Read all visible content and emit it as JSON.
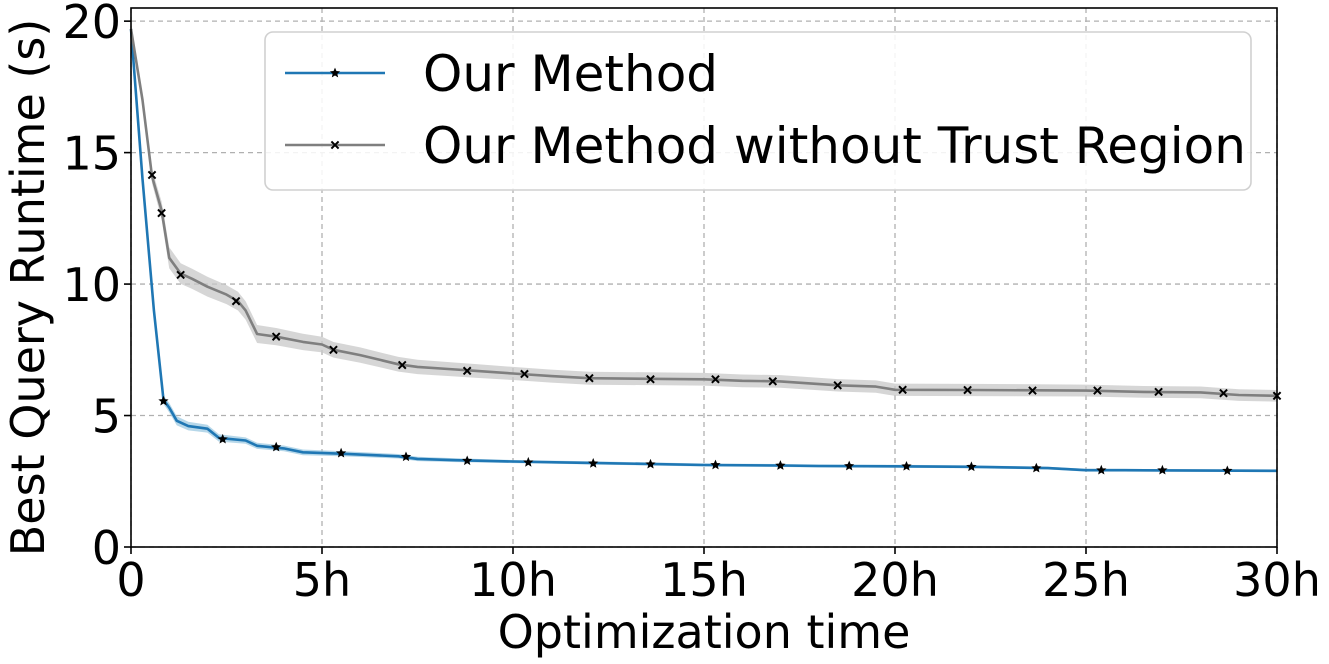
{
  "chart_data": {
    "type": "line",
    "title": "",
    "xlabel": "Optimization time",
    "ylabel": "Best Query Runtime (s)",
    "xlim": [
      0,
      30
    ],
    "ylim": [
      0,
      20.5
    ],
    "x_ticks": [
      {
        "value": 0,
        "label": "0"
      },
      {
        "value": 5,
        "label": "5h"
      },
      {
        "value": 10,
        "label": "10h"
      },
      {
        "value": 15,
        "label": "15h"
      },
      {
        "value": 20,
        "label": "20h"
      },
      {
        "value": 25,
        "label": "25h"
      },
      {
        "value": 30,
        "label": "30h"
      }
    ],
    "y_ticks": [
      {
        "value": 0,
        "label": "0"
      },
      {
        "value": 5,
        "label": "5"
      },
      {
        "value": 10,
        "label": "10"
      },
      {
        "value": 15,
        "label": "15"
      },
      {
        "value": 20,
        "label": "20"
      }
    ],
    "grid": true,
    "legend_position": "top-right",
    "series": [
      {
        "name": "Our Method",
        "color": "#1f77b4",
        "band_color": "#9ecae1",
        "marker": "star",
        "line": [
          [
            0,
            19.7
          ],
          [
            0.3,
            14.0
          ],
          [
            0.6,
            9.0
          ],
          [
            0.85,
            5.6
          ],
          [
            1.0,
            5.3
          ],
          [
            1.2,
            4.8
          ],
          [
            1.5,
            4.6
          ],
          [
            2.0,
            4.5
          ],
          [
            2.3,
            4.15
          ],
          [
            3.0,
            4.05
          ],
          [
            3.3,
            3.85
          ],
          [
            4.0,
            3.75
          ],
          [
            4.5,
            3.6
          ],
          [
            5.5,
            3.55
          ],
          [
            7.0,
            3.45
          ],
          [
            7.5,
            3.35
          ],
          [
            8.5,
            3.3
          ],
          [
            10.0,
            3.25
          ],
          [
            12.0,
            3.2
          ],
          [
            15.0,
            3.12
          ],
          [
            17.0,
            3.1
          ],
          [
            18.0,
            3.08
          ],
          [
            20.0,
            3.07
          ],
          [
            22.0,
            3.05
          ],
          [
            24.0,
            3.0
          ],
          [
            25.0,
            2.92
          ],
          [
            26.0,
            2.92
          ],
          [
            30.0,
            2.9
          ]
        ],
        "band_width": [
          [
            0,
            0.05
          ],
          [
            1.0,
            0.18
          ],
          [
            3.0,
            0.12
          ],
          [
            10.0,
            0.06
          ],
          [
            30.0,
            0.05
          ]
        ],
        "markers": [
          [
            0.85,
            5.55
          ],
          [
            2.4,
            4.1
          ],
          [
            3.8,
            3.8
          ],
          [
            5.5,
            3.57
          ],
          [
            7.2,
            3.43
          ],
          [
            8.8,
            3.28
          ],
          [
            10.4,
            3.22
          ],
          [
            12.1,
            3.18
          ],
          [
            13.6,
            3.15
          ],
          [
            15.3,
            3.12
          ],
          [
            17.0,
            3.1
          ],
          [
            18.8,
            3.08
          ],
          [
            20.3,
            3.07
          ],
          [
            22.0,
            3.05
          ],
          [
            23.7,
            3.0
          ],
          [
            25.4,
            2.92
          ],
          [
            27.0,
            2.92
          ],
          [
            28.7,
            2.9
          ]
        ]
      },
      {
        "name": "Our Method without Trust Region",
        "color": "#7f7f7f",
        "band_color": "#c8c8c8",
        "marker": "x",
        "line": [
          [
            0,
            19.7
          ],
          [
            0.3,
            17.0
          ],
          [
            0.55,
            14.1
          ],
          [
            0.8,
            12.8
          ],
          [
            1.0,
            11.0
          ],
          [
            1.3,
            10.4
          ],
          [
            1.6,
            10.2
          ],
          [
            2.0,
            9.9
          ],
          [
            2.5,
            9.6
          ],
          [
            2.8,
            9.35
          ],
          [
            3.0,
            9.0
          ],
          [
            3.3,
            8.1
          ],
          [
            3.8,
            8.0
          ],
          [
            4.5,
            7.8
          ],
          [
            5.0,
            7.7
          ],
          [
            5.3,
            7.5
          ],
          [
            6.0,
            7.3
          ],
          [
            7.0,
            6.95
          ],
          [
            7.5,
            6.85
          ],
          [
            8.5,
            6.75
          ],
          [
            9.0,
            6.7
          ],
          [
            10.0,
            6.6
          ],
          [
            11.0,
            6.5
          ],
          [
            12.0,
            6.42
          ],
          [
            15.0,
            6.38
          ],
          [
            16.0,
            6.32
          ],
          [
            17.0,
            6.3
          ],
          [
            18.5,
            6.15
          ],
          [
            19.5,
            6.1
          ],
          [
            20.0,
            5.98
          ],
          [
            22.0,
            5.97
          ],
          [
            25.0,
            5.95
          ],
          [
            26.5,
            5.9
          ],
          [
            28.0,
            5.88
          ],
          [
            29.0,
            5.78
          ],
          [
            30.0,
            5.75
          ]
        ],
        "band_width": [
          [
            0,
            0.1
          ],
          [
            1.0,
            0.4
          ],
          [
            3.0,
            0.35
          ],
          [
            5.0,
            0.3
          ],
          [
            10.0,
            0.25
          ],
          [
            30.0,
            0.22
          ]
        ],
        "markers": [
          [
            0.55,
            14.15
          ],
          [
            0.8,
            12.7
          ],
          [
            1.3,
            10.35
          ],
          [
            2.75,
            9.35
          ],
          [
            3.8,
            8.0
          ],
          [
            5.3,
            7.5
          ],
          [
            7.1,
            6.92
          ],
          [
            8.8,
            6.7
          ],
          [
            10.3,
            6.58
          ],
          [
            12.0,
            6.42
          ],
          [
            13.6,
            6.38
          ],
          [
            15.3,
            6.38
          ],
          [
            16.8,
            6.3
          ],
          [
            18.5,
            6.15
          ],
          [
            20.2,
            5.98
          ],
          [
            21.9,
            5.97
          ],
          [
            23.6,
            5.95
          ],
          [
            25.3,
            5.95
          ],
          [
            26.9,
            5.9
          ],
          [
            28.6,
            5.85
          ],
          [
            30.0,
            5.75
          ]
        ]
      }
    ]
  }
}
